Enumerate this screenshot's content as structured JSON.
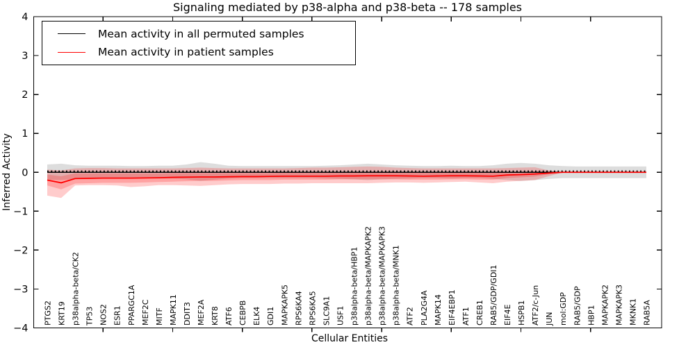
{
  "title": "Signaling mediated by p38-alpha and p38-beta -- 178 samples",
  "legend": {
    "items": [
      {
        "label": "Mean activity in all permuted samples",
        "color": "#000000"
      },
      {
        "label": "Mean activity in patient samples",
        "color": "#ff0000"
      }
    ]
  },
  "axes": {
    "ylabel": "Inferred Activity",
    "xlabel": "Cellular Entities",
    "yticks": [
      -4,
      -3,
      -2,
      -1,
      0,
      1,
      2,
      3,
      4
    ],
    "ylim": [
      -4,
      4
    ]
  },
  "colors": {
    "permuted_line": "#000000",
    "patient_line": "#ff0000",
    "permuted_band": "rgba(100,100,100,0.22)",
    "patient_band": "rgba(255,0,0,0.20)",
    "spine": "#000000"
  },
  "chart_data": {
    "type": "line",
    "title": "Signaling mediated by p38-alpha and p38-beta -- 178 samples",
    "xlabel": "Cellular Entities",
    "ylabel": "Inferred Activity",
    "ylim": [
      -4,
      4
    ],
    "grid": false,
    "legend_position": "upper left",
    "zero_reference_line": {
      "style": "dotted",
      "color": "#000000",
      "value": 0.03
    },
    "categories": [
      "PTGS2",
      "KRT19",
      "p38alpha-beta/CK2",
      "TP53",
      "NOS2",
      "ESR1",
      "PPARGC1A",
      "MEF2C",
      "MITF",
      "MAPK11",
      "DDIT3",
      "MEF2A",
      "KRT8",
      "ATF6",
      "CEBPB",
      "ELK4",
      "GDI1",
      "MAPKAPK5",
      "RPS6KA4",
      "RPS6KA5",
      "SLC9A1",
      "USF1",
      "p38alpha-beta/HBP1",
      "p38alpha-beta/MAPKAPK2",
      "p38alpha-beta/MAPKAPK3",
      "p38alpha-beta/MNK1",
      "ATF2",
      "PLA2G4A",
      "MAPK14",
      "EIF4EBP1",
      "ATF1",
      "CREB1",
      "RAB5/GDP/GDI1",
      "EIF4E",
      "HSPB1",
      "ATF2/c-Jun",
      "JUN",
      "mol:GDP",
      "RAB5/GDP",
      "HBP1",
      "MAPKAPK2",
      "MAPKAPK3",
      "MKNK1",
      "RAB5A"
    ],
    "series": [
      {
        "name": "Mean activity in all permuted samples",
        "color": "#000000",
        "values": [
          0,
          0,
          0,
          0,
          0,
          0,
          0,
          0,
          0,
          0,
          0,
          0,
          0,
          0,
          0,
          0,
          0,
          0,
          0,
          0,
          0,
          0,
          0,
          0,
          0,
          0,
          0,
          0,
          0,
          0,
          0,
          0,
          0,
          0,
          0,
          0,
          0,
          0,
          0,
          0,
          0,
          0,
          0,
          0
        ]
      },
      {
        "name": "Mean activity in patient samples",
        "color": "#ff0000",
        "values": [
          -0.2,
          -0.27,
          -0.16,
          -0.155,
          -0.15,
          -0.15,
          -0.15,
          -0.145,
          -0.14,
          -0.13,
          -0.125,
          -0.12,
          -0.12,
          -0.115,
          -0.11,
          -0.11,
          -0.105,
          -0.1,
          -0.1,
          -0.1,
          -0.1,
          -0.095,
          -0.095,
          -0.09,
          -0.09,
          -0.09,
          -0.095,
          -0.1,
          -0.095,
          -0.09,
          -0.09,
          -0.095,
          -0.1,
          -0.07,
          -0.06,
          -0.045,
          -0.02,
          0,
          0,
          0,
          0,
          0,
          0,
          0
        ]
      }
    ],
    "bands": [
      {
        "name": "permuted-samples-range",
        "color": "rgba(100,100,100,0.22)",
        "upper": [
          0.2,
          0.22,
          0.18,
          0.17,
          0.17,
          0.17,
          0.16,
          0.16,
          0.17,
          0.17,
          0.2,
          0.26,
          0.22,
          0.17,
          0.16,
          0.16,
          0.16,
          0.16,
          0.16,
          0.16,
          0.17,
          0.18,
          0.2,
          0.22,
          0.2,
          0.18,
          0.17,
          0.16,
          0.16,
          0.17,
          0.16,
          0.16,
          0.18,
          0.22,
          0.24,
          0.22,
          0.18,
          0.16,
          0.15,
          0.15,
          0.15,
          0.15,
          0.15,
          0.15
        ],
        "lower": [
          -0.19,
          -0.2,
          -0.17,
          -0.16,
          -0.16,
          -0.16,
          -0.15,
          -0.15,
          -0.16,
          -0.16,
          -0.18,
          -0.22,
          -0.19,
          -0.16,
          -0.15,
          -0.15,
          -0.15,
          -0.15,
          -0.15,
          -0.15,
          -0.16,
          -0.17,
          -0.18,
          -0.2,
          -0.18,
          -0.17,
          -0.16,
          -0.15,
          -0.15,
          -0.16,
          -0.15,
          -0.15,
          -0.17,
          -0.2,
          -0.22,
          -0.2,
          -0.17,
          -0.15,
          -0.15,
          -0.15,
          -0.15,
          -0.15,
          -0.15,
          -0.15
        ]
      },
      {
        "name": "patient-samples-outer-range",
        "color": "rgba(255,0,0,0.20)",
        "upper": [
          0.07,
          0.05,
          0.1,
          0.11,
          0.11,
          0.1,
          0.1,
          0.1,
          0.1,
          0.1,
          0.11,
          0.12,
          0.11,
          0.1,
          0.1,
          0.1,
          0.1,
          0.1,
          0.11,
          0.12,
          0.12,
          0.13,
          0.14,
          0.15,
          0.14,
          0.12,
          0.11,
          0.1,
          0.1,
          0.1,
          0.1,
          0.1,
          0.1,
          0.11,
          0.12,
          0.13,
          0.05,
          0,
          0,
          0,
          0,
          0,
          0,
          0
        ],
        "lower": [
          -0.6,
          -0.66,
          -0.34,
          -0.33,
          -0.33,
          -0.34,
          -0.38,
          -0.36,
          -0.33,
          -0.33,
          -0.34,
          -0.35,
          -0.33,
          -0.31,
          -0.3,
          -0.3,
          -0.3,
          -0.29,
          -0.29,
          -0.28,
          -0.28,
          -0.28,
          -0.28,
          -0.28,
          -0.27,
          -0.26,
          -0.26,
          -0.27,
          -0.26,
          -0.25,
          -0.24,
          -0.26,
          -0.28,
          -0.24,
          -0.22,
          -0.2,
          -0.1,
          0,
          0,
          0,
          0,
          0,
          0,
          0
        ]
      },
      {
        "name": "patient-samples-inner-range",
        "color": "rgba(255,0,0,0.20)",
        "upper": [
          -0.06,
          -0.1,
          -0.03,
          -0.03,
          -0.03,
          -0.03,
          -0.03,
          -0.03,
          -0.03,
          -0.02,
          -0.02,
          -0.02,
          -0.02,
          -0.02,
          -0.02,
          -0.02,
          -0.02,
          -0.01,
          -0.01,
          -0.01,
          -0.01,
          -0.01,
          -0.01,
          0.0,
          0.0,
          0.0,
          0.0,
          -0.01,
          0.0,
          0.0,
          0.0,
          0.0,
          -0.01,
          0.01,
          0.01,
          0.02,
          0.01,
          0,
          0,
          0,
          0,
          0,
          0,
          0
        ],
        "lower": [
          -0.34,
          -0.44,
          -0.29,
          -0.28,
          -0.27,
          -0.27,
          -0.27,
          -0.26,
          -0.25,
          -0.24,
          -0.23,
          -0.22,
          -0.22,
          -0.21,
          -0.2,
          -0.2,
          -0.2,
          -0.19,
          -0.19,
          -0.19,
          -0.19,
          -0.18,
          -0.18,
          -0.18,
          -0.18,
          -0.18,
          -0.19,
          -0.19,
          -0.19,
          -0.18,
          -0.18,
          -0.19,
          -0.19,
          -0.15,
          -0.13,
          -0.11,
          -0.05,
          0,
          0,
          0,
          0,
          0,
          0,
          0
        ]
      }
    ]
  }
}
